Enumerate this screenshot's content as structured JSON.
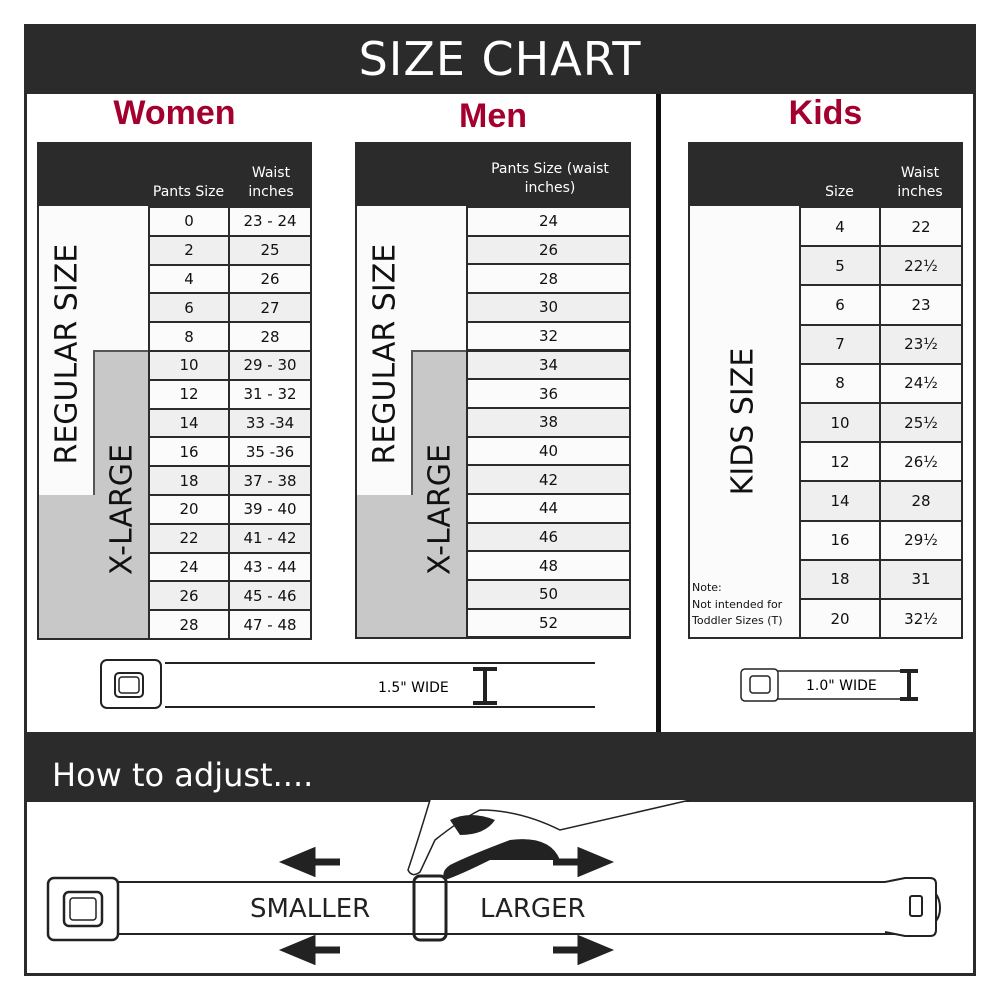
{
  "title": "SIZE CHART",
  "women": {
    "title": "Women",
    "col1": "Pants Size",
    "col2": "Waist inches",
    "regular_label": "REGULAR SIZE",
    "xlarge_label": "X-LARGE",
    "rows": [
      [
        "0",
        "23 - 24"
      ],
      [
        "2",
        "25"
      ],
      [
        "4",
        "26"
      ],
      [
        "6",
        "27"
      ],
      [
        "8",
        "28"
      ],
      [
        "10",
        "29 - 30"
      ],
      [
        "12",
        "31 - 32"
      ],
      [
        "14",
        "33 -34"
      ],
      [
        "16",
        "35 -36"
      ],
      [
        "18",
        "37 - 38"
      ],
      [
        "20",
        "39 - 40"
      ],
      [
        "22",
        "41 - 42"
      ],
      [
        "24",
        "43 - 44"
      ],
      [
        "26",
        "45 - 46"
      ],
      [
        "28",
        "47 - 48"
      ]
    ],
    "regular_count": 5
  },
  "men": {
    "title": "Men",
    "col1": "Pants Size (waist inches)",
    "regular_label": "REGULAR SIZE",
    "xlarge_label": "X-LARGE",
    "rows": [
      "24",
      "26",
      "28",
      "30",
      "32",
      "34",
      "36",
      "38",
      "40",
      "42",
      "44",
      "46",
      "48",
      "50",
      "52"
    ],
    "regular_count": 5
  },
  "kids": {
    "title": "Kids",
    "col1": "Size",
    "col2": "Waist inches",
    "label": "KIDS SIZE",
    "note": "Note:",
    "note_text": "Not intended for Toddler Sizes (T)",
    "rows": [
      [
        "4",
        "22"
      ],
      [
        "5",
        "22½"
      ],
      [
        "6",
        "23"
      ],
      [
        "7",
        "23½"
      ],
      [
        "8",
        "24½"
      ],
      [
        "10",
        "25½"
      ],
      [
        "12",
        "26½"
      ],
      [
        "14",
        "28"
      ],
      [
        "16",
        "29½"
      ],
      [
        "18",
        "31"
      ],
      [
        "20",
        "32½"
      ]
    ]
  },
  "adult_belt_width": "1.5\" WIDE",
  "kids_belt_width": "1.0\" WIDE",
  "adjust": {
    "title": "How to adjust....",
    "smaller": "SMALLER",
    "larger": "LARGER"
  },
  "colors": {
    "dark": "#2b2b2b",
    "accent": "#a3002f",
    "xlarge_gray": "#c8c8c8"
  }
}
